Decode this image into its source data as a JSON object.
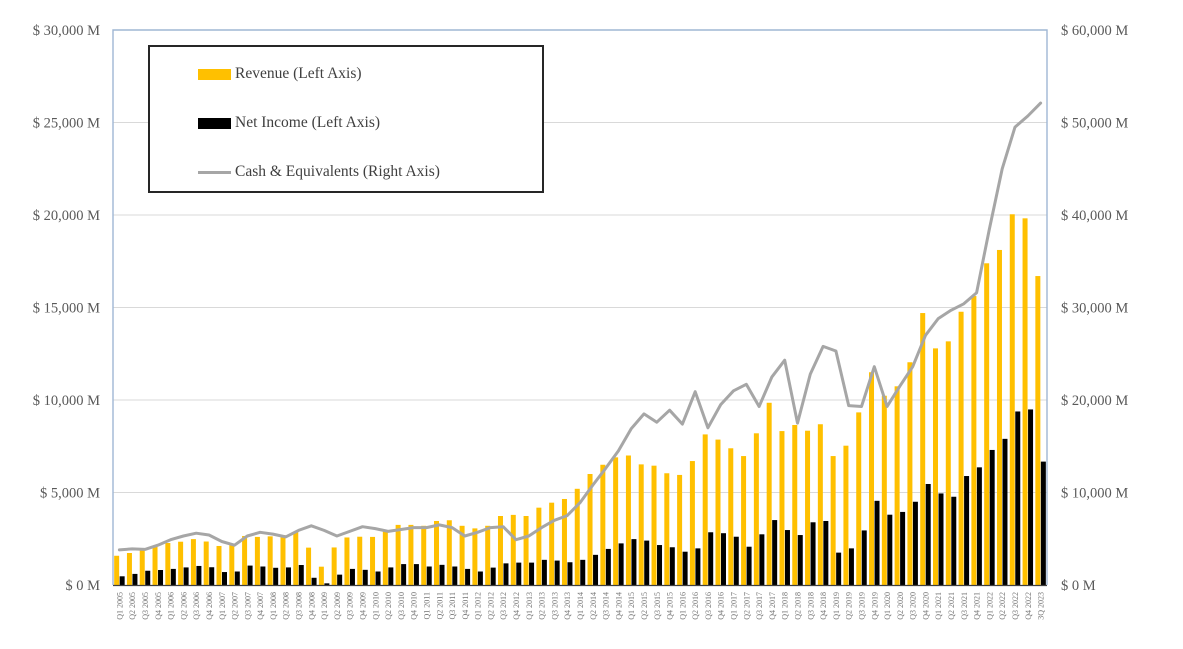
{
  "chart_data": {
    "type": "combo",
    "title": "",
    "categories": [
      "Q1 2005",
      "Q2 2005",
      "Q3 2005",
      "Q4 2005",
      "Q1 2006",
      "Q2 2006",
      "Q3 2006",
      "Q4 2006",
      "Q1 2007",
      "Q2 2007",
      "Q3 2007",
      "Q4 2007",
      "Q1 2008",
      "Q2 2008",
      "Q3 2008",
      "Q4 2008",
      "Q1 2009",
      "Q2 2009",
      "Q3 2009",
      "Q4 2009",
      "Q1 2010",
      "Q2 2010",
      "Q3 2010",
      "Q4 2010",
      "Q1 2011",
      "Q2 2011",
      "Q3 2011",
      "Q4 2011",
      "Q1 2012",
      "Q2 2012",
      "Q3 2012",
      "Q4 2012",
      "Q1 2013",
      "Q2 2013",
      "Q3 2013",
      "Q4 2013",
      "Q1 2014",
      "Q2 2014",
      "Q3 2014",
      "Q4 2014",
      "Q1 2015",
      "Q2 2015",
      "Q3 2015",
      "Q4 2015",
      "Q1 2016",
      "Q2 2016",
      "Q3 2016",
      "Q4 2016",
      "Q1 2017",
      "Q2 2017",
      "Q3 2017",
      "Q4 2017",
      "Q1 2018",
      "Q2 2018",
      "Q3 2018",
      "Q4 2018",
      "Q1 2019",
      "Q2 2019",
      "Q3 2019",
      "Q4 2019",
      "Q1 2020",
      "Q2 2020",
      "Q3 2020",
      "Q4 2020",
      "Q1 2021",
      "Q2 2021",
      "Q3 2021",
      "Q4 2021",
      "Q1 2022",
      "Q2 2022",
      "Q3 2022",
      "Q4 2022",
      "3Q 2023"
    ],
    "series": [
      {
        "name": "Revenue (Left Axis)",
        "type": "bar",
        "axis": "left",
        "color": "#FFC000",
        "values": [
          1580,
          1730,
          1950,
          2090,
          2270,
          2340,
          2480,
          2350,
          2110,
          2160,
          2650,
          2600,
          2630,
          2700,
          2870,
          2020,
          990,
          2030,
          2570,
          2610,
          2600,
          2960,
          3250,
          3250,
          3200,
          3460,
          3500,
          3200,
          3060,
          3200,
          3730,
          3790,
          3730,
          4180,
          4450,
          4650,
          5200,
          6000,
          6500,
          6900,
          7000,
          6520,
          6450,
          6040,
          5950,
          6700,
          8140,
          7860,
          7390,
          6970,
          8200,
          9850,
          8320,
          8650,
          8340,
          8690,
          6970,
          7530,
          9330,
          11500,
          10230,
          10740,
          12040,
          14700,
          12790,
          13170,
          14770,
          15620,
          17390,
          18110,
          20040,
          19820,
          16700
        ]
      },
      {
        "name": "Net Income (Left Axis)",
        "type": "bar",
        "axis": "left",
        "color": "#000000",
        "values": [
          470,
          600,
          770,
          810,
          870,
          950,
          1030,
          960,
          700,
          730,
          1050,
          1000,
          930,
          950,
          1080,
          390,
          90,
          560,
          870,
          820,
          730,
          950,
          1130,
          1130,
          1000,
          1090,
          1000,
          870,
          730,
          940,
          1170,
          1210,
          1210,
          1360,
          1320,
          1230,
          1360,
          1630,
          1950,
          2250,
          2480,
          2400,
          2160,
          2040,
          1800,
          1980,
          2850,
          2800,
          2610,
          2070,
          2740,
          3510,
          2970,
          2700,
          3390,
          3460,
          1750,
          1980,
          2950,
          4550,
          3800,
          3950,
          4500,
          5460,
          4950,
          4770,
          5890,
          6360,
          7300,
          7900,
          9380,
          9490,
          6670
        ]
      },
      {
        "name": "Cash & Equivalents (Right Axis)",
        "type": "line",
        "axis": "right",
        "color": "#A6A6A6",
        "values": [
          3800,
          3900,
          3850,
          4300,
          4900,
          5300,
          5600,
          5400,
          4700,
          4300,
          5300,
          5700,
          5500,
          5200,
          5900,
          6400,
          5900,
          5300,
          5800,
          6300,
          6100,
          5800,
          6000,
          6200,
          6200,
          6500,
          6200,
          5300,
          5700,
          6200,
          6300,
          4900,
          5300,
          6200,
          7000,
          7500,
          8900,
          10800,
          12600,
          14500,
          16900,
          18500,
          17600,
          18900,
          17400,
          20900,
          17000,
          19500,
          21000,
          21700,
          19300,
          22500,
          24300,
          17500,
          22800,
          25800,
          25300,
          19400,
          19300,
          23600,
          19300,
          21500,
          23600,
          27000,
          28800,
          29700,
          30400,
          31600,
          38500,
          45000,
          49500,
          50700,
          52100
        ]
      }
    ],
    "left_axis": {
      "min": 0,
      "max": 30000,
      "ticks": [
        {
          "label": "$ 30,000 M",
          "value": 30000
        },
        {
          "label": "$ 25,000 M",
          "value": 25000
        },
        {
          "label": "$ 20,000 M",
          "value": 20000
        },
        {
          "label": "$ 15,000 M",
          "value": 15000
        },
        {
          "label": "$ 10,000 M",
          "value": 10000
        },
        {
          "label": "$ 5,000 M",
          "value": 5000
        },
        {
          "label": "$ 0 M",
          "value": 0
        }
      ]
    },
    "right_axis": {
      "min": 0,
      "max": 60000,
      "ticks": [
        {
          "label": "$ 60,000 M",
          "value": 60000
        },
        {
          "label": "$ 50,000 M",
          "value": 50000
        },
        {
          "label": "$ 40,000 M",
          "value": 40000
        },
        {
          "label": "$ 30,000 M",
          "value": 30000
        },
        {
          "label": "$ 20,000 M",
          "value": 20000
        },
        {
          "label": "$ 10,000 M",
          "value": 10000
        },
        {
          "label": "$ 0 M",
          "value": 0
        }
      ]
    },
    "legend": {
      "position": "top-left",
      "entries": [
        {
          "label": "Revenue (Left Axis)",
          "color": "#FFC000",
          "swatch": "bar"
        },
        {
          "label": "Net Income (Left Axis)",
          "color": "#000000",
          "swatch": "bar"
        },
        {
          "label": "Cash & Equivalents (Right Axis)",
          "color": "#A6A6A6",
          "swatch": "line"
        }
      ]
    },
    "grid": true,
    "colors": {
      "gridline": "#D9D9D9",
      "plot_border": "#9FB7D4",
      "axis_line": "#404040",
      "tick_label": "#595959",
      "x_label": "#737373"
    }
  }
}
